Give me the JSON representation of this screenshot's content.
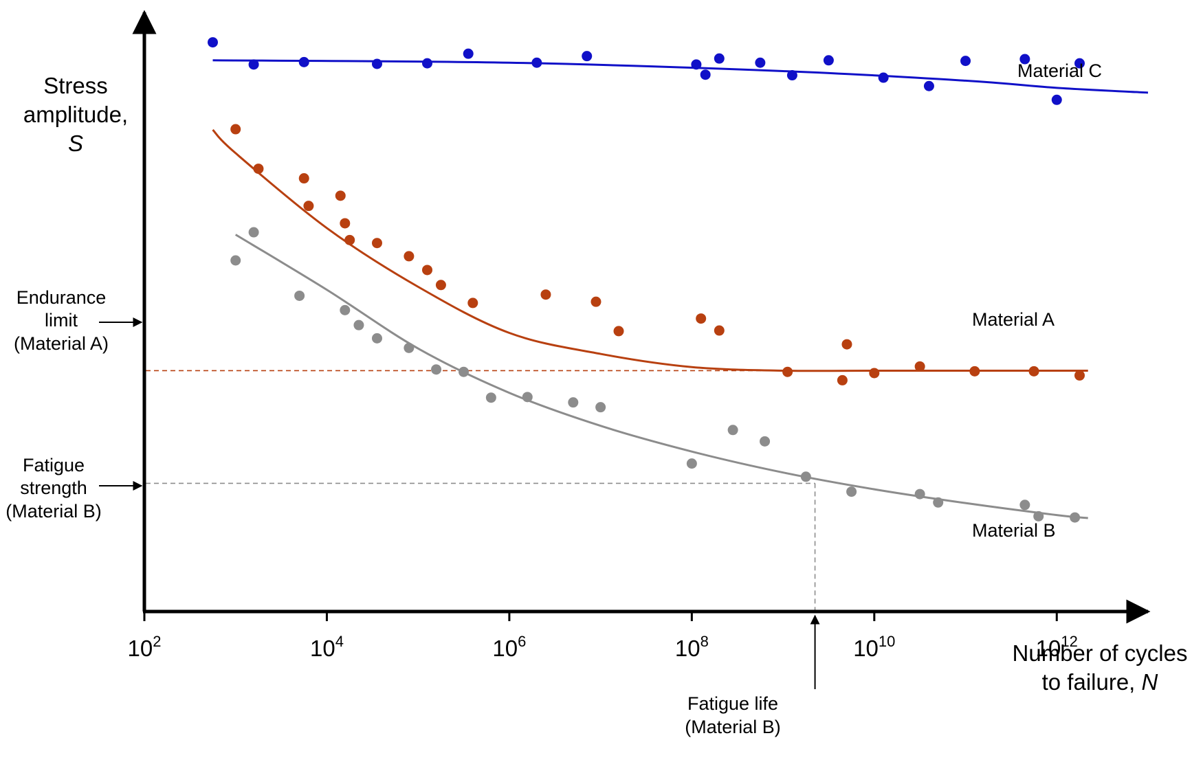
{
  "chart_data": {
    "type": "scatter",
    "x_scale": "log",
    "x_axis": {
      "label_line1": "Number of cycles",
      "label_line2": "to failure, ",
      "label_symbol": "N",
      "range": [
        100,
        10000000000000.0
      ],
      "ticks": [
        {
          "value": 100,
          "base": "10",
          "exp": "2"
        },
        {
          "value": 10000,
          "base": "10",
          "exp": "4"
        },
        {
          "value": 1000000,
          "base": "10",
          "exp": "6"
        },
        {
          "value": 100000000,
          "base": "10",
          "exp": "8"
        },
        {
          "value": 10000000000,
          "base": "10",
          "exp": "10"
        },
        {
          "value": 1000000000000,
          "base": "10",
          "exp": "12"
        }
      ]
    },
    "y_axis": {
      "label_line1": "Stress",
      "label_line2": "amplitude,",
      "label_symbol": "S",
      "range": [
        0,
        100
      ]
    },
    "grid": false,
    "series": [
      {
        "name": "Material C",
        "color": "#1010c8",
        "fit": [
          [
            562,
            92.0
          ],
          [
            1000000.0,
            91.6
          ],
          [
            1000000000.0,
            90.2
          ],
          [
            100000000000.0,
            88.6
          ],
          [
            1000000000000.0,
            87.4
          ],
          [
            10000000000000.0,
            86.6
          ]
        ],
        "points": [
          [
            562,
            95.0
          ],
          [
            1580,
            91.3
          ],
          [
            5620,
            91.7
          ],
          [
            35500.0,
            91.4
          ],
          [
            126000.0,
            91.5
          ],
          [
            355000.0,
            93.1
          ],
          [
            2000000.0,
            91.6
          ],
          [
            7080000.0,
            92.7
          ],
          [
            112000000.0,
            91.3
          ],
          [
            141000000.0,
            89.6
          ],
          [
            200000000.0,
            92.3
          ],
          [
            562000000.0,
            91.6
          ],
          [
            1260000000.0,
            89.5
          ],
          [
            3160000000.0,
            92.0
          ],
          [
            12600000000.0,
            89.1
          ],
          [
            39800000000.0,
            87.7
          ],
          [
            100000000000.0,
            91.9
          ],
          [
            447000000000.0,
            92.2
          ],
          [
            1000000000000.0,
            85.4
          ],
          [
            1780000000000.0,
            91.5
          ]
        ]
      },
      {
        "name": "Material A",
        "color": "#b84010",
        "fit": [
          [
            562,
            80.4
          ],
          [
            1000.0,
            76.5
          ],
          [
            10000.0,
            64.0
          ],
          [
            100000.0,
            54.2
          ],
          [
            1000000.0,
            46.5
          ],
          [
            10000000.0,
            43.0
          ],
          [
            100000000.0,
            40.8
          ],
          [
            1000000000.0,
            40.2
          ],
          [
            10000000000.0,
            40.2
          ],
          [
            1000000000000.0,
            40.2
          ],
          [
            2200000000000.0,
            40.2
          ]
        ],
        "points": [
          [
            1000,
            80.5
          ],
          [
            1780,
            73.9
          ],
          [
            5620,
            72.3
          ],
          [
            6310,
            67.7
          ],
          [
            14100.0,
            69.4
          ],
          [
            15800.0,
            64.8
          ],
          [
            17800.0,
            62.0
          ],
          [
            35500.0,
            61.5
          ],
          [
            79400.0,
            59.3
          ],
          [
            126000.0,
            57.0
          ],
          [
            178000.0,
            54.5
          ],
          [
            398000.0,
            51.5
          ],
          [
            2510000.0,
            52.9
          ],
          [
            8910000.0,
            51.7
          ],
          [
            15800000.0,
            46.8
          ],
          [
            126000000.0,
            48.9
          ],
          [
            200000000.0,
            46.9
          ],
          [
            1120000000.0,
            40.0
          ],
          [
            4470000000.0,
            38.6
          ],
          [
            5010000000.0,
            44.6
          ],
          [
            10000000000.0,
            39.8
          ],
          [
            31600000000.0,
            40.9
          ],
          [
            126000000000.0,
            40.1
          ],
          [
            562000000000.0,
            40.1
          ],
          [
            1780000000000.0,
            39.4
          ]
        ]
      },
      {
        "name": "Material B",
        "color": "#8c8c8c",
        "fit": [
          [
            1000,
            62.9
          ],
          [
            10000.0,
            53.7
          ],
          [
            100000.0,
            43.9
          ],
          [
            1000000.0,
            36.5
          ],
          [
            10000000.0,
            31.0
          ],
          [
            100000000.0,
            26.7
          ],
          [
            1000000000.0,
            23.2
          ],
          [
            10000000000.0,
            20.4
          ],
          [
            100000000000.0,
            18.1
          ],
          [
            1000000000000.0,
            16.1
          ],
          [
            2200000000000.0,
            15.6
          ]
        ],
        "points": [
          [
            1000,
            58.6
          ],
          [
            1580,
            63.3
          ],
          [
            5010,
            52.7
          ],
          [
            15800.0,
            50.3
          ],
          [
            22400.0,
            47.8
          ],
          [
            35500.0,
            45.6
          ],
          [
            79400.0,
            44.0
          ],
          [
            158000.0,
            40.4
          ],
          [
            316000.0,
            40.0
          ],
          [
            631000.0,
            35.7
          ],
          [
            1580000.0,
            35.8
          ],
          [
            5010000.0,
            34.9
          ],
          [
            10000000.0,
            34.1
          ],
          [
            282000000.0,
            30.3
          ],
          [
            631000000.0,
            28.4
          ],
          [
            100000000.0,
            24.7
          ],
          [
            1780000000.0,
            22.5
          ],
          [
            5620000000.0,
            20.0
          ],
          [
            31600000000.0,
            19.6
          ],
          [
            50100000000.0,
            18.2
          ],
          [
            631000000000.0,
            15.9
          ],
          [
            447000000000.0,
            17.8
          ],
          [
            1580000000000.0,
            15.7
          ]
        ]
      }
    ],
    "annotations": {
      "endurance_limit": {
        "lines": [
          "Endurance",
          "limit",
          "(Material A)"
        ],
        "y": 40.2,
        "color": "#b84010"
      },
      "fatigue_strength": {
        "lines": [
          "Fatigue",
          "strength",
          "(Material B)"
        ],
        "y": 21.4,
        "color": "#8c8c8c"
      },
      "fatigue_life": {
        "lines": [
          "Fatigue life",
          "(Material B)"
        ],
        "x": 2240000000.0,
        "color": "#8c8c8c"
      }
    }
  }
}
